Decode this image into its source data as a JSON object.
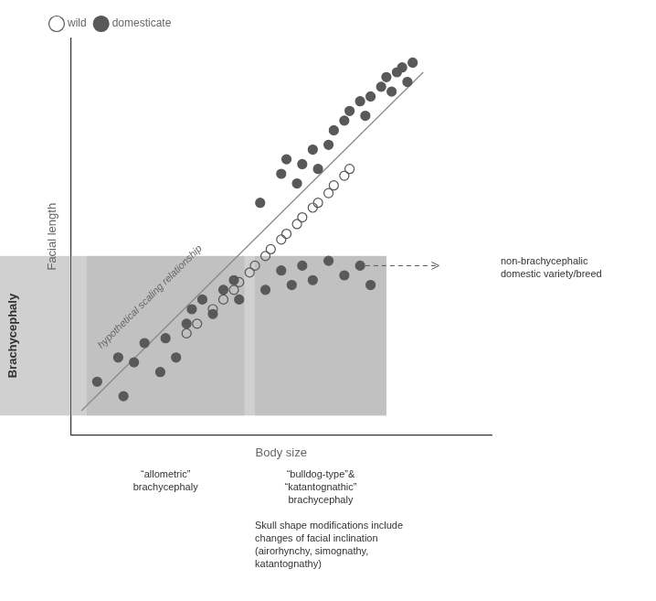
{
  "chart_data": {
    "type": "scatter",
    "xlabel": "Body size",
    "ylabel": "Facial length",
    "xlim": [
      1.0,
      5.0
    ],
    "ylim": [
      0.8,
      4.9
    ],
    "tick_labels": false,
    "grid": false,
    "legend": "upper left",
    "series": [
      {
        "name": "wild",
        "color": "#555555",
        "marker": "open",
        "x": [
          2.1,
          2.2,
          2.35,
          2.45,
          2.55,
          2.6,
          2.7,
          2.75,
          2.85,
          2.9,
          3.0,
          3.05,
          3.15,
          3.2,
          3.3,
          3.35,
          3.45,
          3.5,
          3.6,
          3.65
        ],
        "values": [
          1.85,
          1.95,
          2.1,
          2.2,
          2.3,
          2.38,
          2.48,
          2.55,
          2.65,
          2.72,
          2.82,
          2.88,
          2.98,
          3.05,
          3.15,
          3.2,
          3.3,
          3.38,
          3.48,
          3.55
        ]
      },
      {
        "name": "domesticate",
        "color": "#595959",
        "marker": "filled",
        "x": [
          2.8,
          3.0,
          3.05,
          3.15,
          3.2,
          3.3,
          3.35,
          3.45,
          3.5,
          3.6,
          3.65,
          3.75,
          3.8,
          3.85,
          3.95,
          4.0,
          4.05,
          4.1,
          4.15,
          4.2,
          4.25,
          1.25,
          1.45,
          1.5,
          1.6,
          1.7,
          1.85,
          1.9,
          2.0,
          2.1,
          2.15,
          2.25,
          2.35,
          2.45,
          2.55,
          2.6,
          2.85,
          3.0,
          3.1,
          3.2,
          3.3,
          3.45,
          3.6,
          3.75,
          3.85
        ],
        "values": [
          3.2,
          3.5,
          3.65,
          3.4,
          3.6,
          3.75,
          3.55,
          3.8,
          3.95,
          4.05,
          4.15,
          4.25,
          4.1,
          4.3,
          4.4,
          4.5,
          4.35,
          4.55,
          4.6,
          4.45,
          4.65,
          1.35,
          1.6,
          1.2,
          1.55,
          1.75,
          1.45,
          1.8,
          1.6,
          1.95,
          2.1,
          2.2,
          2.05,
          2.3,
          2.4,
          2.2,
          2.3,
          2.5,
          2.35,
          2.55,
          2.4,
          2.6,
          2.45,
          2.55,
          2.35
        ]
      },
      {
        "type": "line",
        "color": "#888888",
        "x": [
          1.1,
          4.35
        ],
        "values": [
          1.05,
          4.55
        ]
      }
    ],
    "regions": [
      {
        "x": [
          1.0,
          4.0
        ],
        "y": [
          1.0,
          2.65
        ],
        "color": "#d0d0d0"
      },
      {
        "x": [
          1.15,
          2.65
        ],
        "y": [
          1.0,
          2.65
        ],
        "color": "#b8b8b8"
      },
      {
        "x": [
          2.75,
          4.0
        ],
        "y": [
          1.0,
          2.65
        ],
        "color": "#b8b8b8"
      }
    ],
    "arrow": {
      "x": [
        3.8,
        4.5
      ],
      "y": 2.55
    },
    "annotations": [
      "hypothetical scaling relationship",
      "non-brachycephalic\ndomestic variety/breed",
      "Brachycephaly",
      "“allometric”\nbrachycephaly",
      "“bulldog-type”&\n“katantognathic”\nbrachycephaly",
      "Skull shape modifications include\nchanges of facial inclination\n(airorhynchy, simognathy,\nkatantognathy)"
    ]
  }
}
